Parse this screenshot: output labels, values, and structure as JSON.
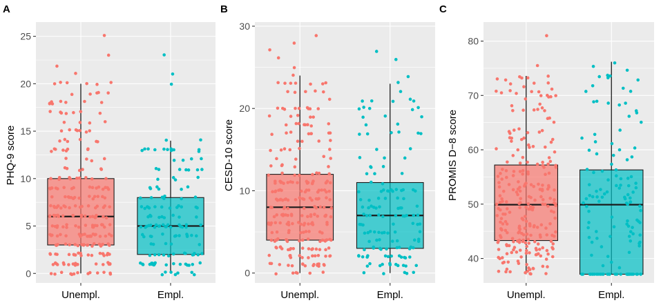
{
  "chart_data": [
    {
      "panel": "A",
      "type": "boxplot",
      "ylabel": "PHQ-9 score",
      "categories": [
        "Unempl.",
        "Empl."
      ],
      "ylim": [
        -1,
        26.5
      ],
      "yticks": [
        0,
        5,
        10,
        15,
        20,
        25
      ],
      "grid": true,
      "series": [
        {
          "name": "Unempl.",
          "color": "#F8766D",
          "min": 0,
          "q1": 3,
          "median": 6,
          "q3": 10,
          "max": 20,
          "outliers": [
            21,
            22,
            23,
            25
          ],
          "n": 260,
          "max_value": 25,
          "discrete": true
        },
        {
          "name": "Empl.",
          "color": "#00BFC4",
          "min": 0,
          "q1": 2,
          "median": 5,
          "q3": 8,
          "max": 14,
          "outliers": [
            20,
            21,
            23
          ],
          "n": 140,
          "max_value": 23,
          "discrete": true
        }
      ]
    },
    {
      "panel": "B",
      "type": "boxplot",
      "ylabel": "CESD-10 score",
      "categories": [
        "Unempl.",
        "Empl."
      ],
      "ylim": [
        -1.2,
        30.5
      ],
      "yticks": [
        0,
        10,
        20,
        30
      ],
      "grid": true,
      "series": [
        {
          "name": "Unempl.",
          "color": "#F8766D",
          "min": 0,
          "q1": 4,
          "median": 8,
          "q3": 12,
          "max": 24,
          "outliers": [
            25,
            26,
            27,
            28,
            29
          ],
          "n": 260,
          "max_value": 29,
          "discrete": true
        },
        {
          "name": "Empl.",
          "color": "#00BFC4",
          "min": 0,
          "q1": 3,
          "median": 7,
          "q3": 11,
          "max": 23,
          "outliers": [
            24,
            26,
            27
          ],
          "n": 140,
          "max_value": 27,
          "discrete": true
        }
      ]
    },
    {
      "panel": "C",
      "type": "boxplot",
      "ylabel": "PROMIS D−8 score",
      "categories": [
        "Unempl.",
        "Empl."
      ],
      "ylim": [
        35.5,
        83.5
      ],
      "yticks": [
        40,
        50,
        60,
        70,
        80
      ],
      "grid": true,
      "series": [
        {
          "name": "Unempl.",
          "color": "#F8766D",
          "min": 37.1,
          "q1": 43.3,
          "median": 49.9,
          "q3": 57.2,
          "max": 73.6,
          "outliers": [
            75.5,
            81
          ],
          "n": 260,
          "max_value": 81,
          "discrete": false
        },
        {
          "name": "Empl.",
          "color": "#00BFC4",
          "min": 37.1,
          "q1": 37.1,
          "median": 49.9,
          "q3": 56.3,
          "max": 76.2,
          "outliers": [],
          "n": 140,
          "max_value": 76.2,
          "discrete": false
        }
      ]
    }
  ]
}
